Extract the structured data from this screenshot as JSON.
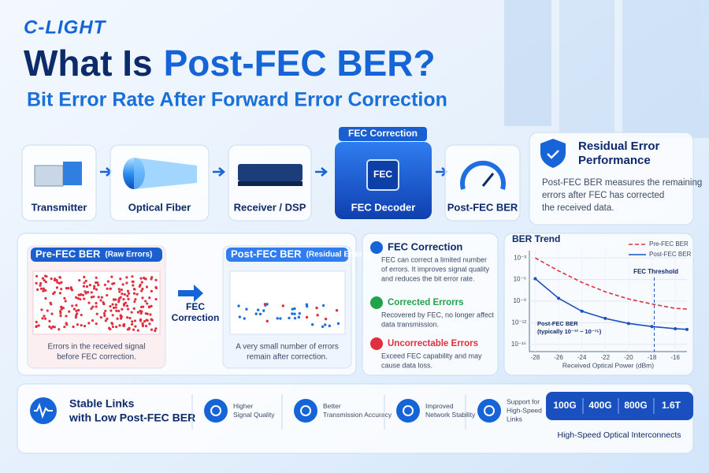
{
  "logo": "C-LIGHT",
  "title": {
    "part1": "What Is",
    "part2": "Post-FEC BER?"
  },
  "subtitle": "Bit Error Rate After Forward Error Correction",
  "pipeline": {
    "stages": [
      "Transmitter",
      "Optical Fiber",
      "Receiver / DSP",
      "FEC Decoder",
      "Post-FEC BER"
    ],
    "fec_label": "FEC Correction",
    "chip": "FEC"
  },
  "residual": {
    "title": [
      "Residual Error",
      "Performance"
    ],
    "text": [
      "Post-FEC BER measures the remaining",
      "errors after FEC has corrected",
      "the received data."
    ]
  },
  "pre": {
    "title": "Pre-FEC BER",
    "tag": "(Raw Errors)",
    "caption": [
      "Errors in the received signal",
      "before FEC correction."
    ]
  },
  "arrow": [
    "FEC",
    "Correction"
  ],
  "post": {
    "title": "Post-FEC BER",
    "tag": "(Residual Errors)",
    "caption": [
      "A very small number of errors",
      "remain after correction."
    ]
  },
  "info": [
    {
      "title": "FEC Correction",
      "text": [
        "FEC can correct a limited number",
        "of errors. It improves signal quality",
        "and reduces the bit error rate."
      ]
    },
    {
      "title": "Corrected Errorrs",
      "text": [
        "Recovered by FEC, no longer affect",
        "data transmission."
      ]
    },
    {
      "title": "Uncorrectable Errors",
      "text": [
        "Exceed FEC capability and may",
        "cause data loss."
      ]
    }
  ],
  "chart_data": {
    "type": "line",
    "title": "BER Trend",
    "x": [
      -28,
      -26,
      -24,
      -22,
      -20,
      -18,
      -16,
      -15
    ],
    "series": [
      {
        "name": "Pre-FEC BER",
        "color": "#e0303f",
        "dash": true,
        "values": [
          0.001,
          1.6e-05,
          4e-07,
          2e-08,
          2e-09,
          4e-10,
          1e-10,
          8e-11
        ]
      },
      {
        "name": "Post-FEC BER",
        "color": "#1f4fbf",
        "dash": false,
        "values": [
          1.3e-06,
          2.5e-09,
          4e-11,
          4e-12,
          8e-13,
          3e-13,
          1.5e-13,
          1.2e-13
        ]
      }
    ],
    "xlim": [
      -28.5,
      -15
    ],
    "ylim": [
      1e-16,
      0.01
    ],
    "log_y": true,
    "xticks": [
      -28,
      -26,
      -24,
      -22,
      -20,
      -18,
      -16
    ],
    "yticks": [
      {
        "value": 0.001,
        "label": "10⁻³"
      },
      {
        "value": 1e-06,
        "label": "10⁻⁶"
      },
      {
        "value": 1e-09,
        "label": "10⁻⁹"
      },
      {
        "value": 1e-12,
        "label": "10⁻¹²"
      },
      {
        "value": 1e-15,
        "label": "10⁻¹⁵"
      }
    ],
    "xlabel": "Received Optical Power (dBm)",
    "grid": true,
    "legend": "upper right",
    "threshold": {
      "x": -17.8,
      "label": "FEC Threshold"
    },
    "annotation": [
      "Post-FEC BER",
      "(typically 10⁻¹² ~ 10⁻¹⁵)"
    ]
  },
  "footer": {
    "headline": [
      "Stable Links",
      "with Low Post-FEC BER"
    ],
    "features": [
      [
        "Higher",
        "Signal Quality"
      ],
      [
        "Better",
        "Transmission Accuracy"
      ],
      [
        "Improved",
        "Network Stability"
      ],
      [
        "Support for",
        "High-Speed",
        "Links"
      ]
    ],
    "speeds": [
      "100G",
      "400G",
      "800G",
      "1.6T"
    ],
    "speed_caption": "High-Speed Optical Interconnects"
  }
}
